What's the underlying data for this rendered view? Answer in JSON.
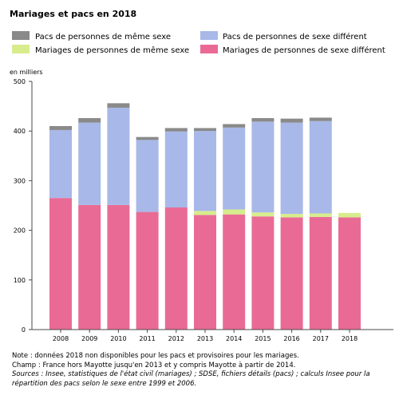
{
  "chart_data": {
    "type": "bar",
    "stacked": true,
    "title": "Mariages et pacs en 2018",
    "ylabel": "en milliers",
    "xlabel": "",
    "ylim": [
      0,
      500
    ],
    "yticks": [
      0,
      100,
      200,
      300,
      400,
      500
    ],
    "categories": [
      "2008",
      "2009",
      "2010",
      "2011",
      "2012",
      "2013",
      "2014",
      "2015",
      "2016",
      "2017",
      "2018"
    ],
    "legend_position": "top",
    "grid": false,
    "series": [
      {
        "name": "Mariages de personnes de sexe différent",
        "color": "#e96b95",
        "values": [
          265,
          251,
          251,
          237,
          246,
          231,
          232,
          228,
          226,
          227,
          226
        ]
      },
      {
        "name": "Mariages de personnes de même sexe",
        "color": "#d7ec8c",
        "values": [
          0,
          0,
          0,
          0,
          0,
          8,
          10,
          8,
          7,
          7,
          9
        ]
      },
      {
        "name": "Pacs de personnes de sexe différent",
        "color": "#a8b8e8",
        "values": [
          137,
          166,
          196,
          145,
          153,
          161,
          165,
          183,
          184,
          186,
          0
        ]
      },
      {
        "name": "Pacs de personnes de même sexe",
        "color": "#8a8a8a",
        "values": [
          8,
          9,
          9,
          6,
          7,
          6,
          7,
          7,
          8,
          7,
          0
        ]
      }
    ]
  },
  "notes": {
    "line1": "Note : données 2018 non disponibles pour les pacs et provisoires pour les mariages.",
    "line2": "Champ : France hors Mayotte jusqu'en 2013 et y compris Mayotte à partir de 2014.",
    "sources": "Sources : Insee, statistiques de l'état civil (mariages) ; SDSE, fichiers détails (pacs) ; calculs Insee pour la répartition des pacs selon le sexe entre 1999 et 2006."
  }
}
